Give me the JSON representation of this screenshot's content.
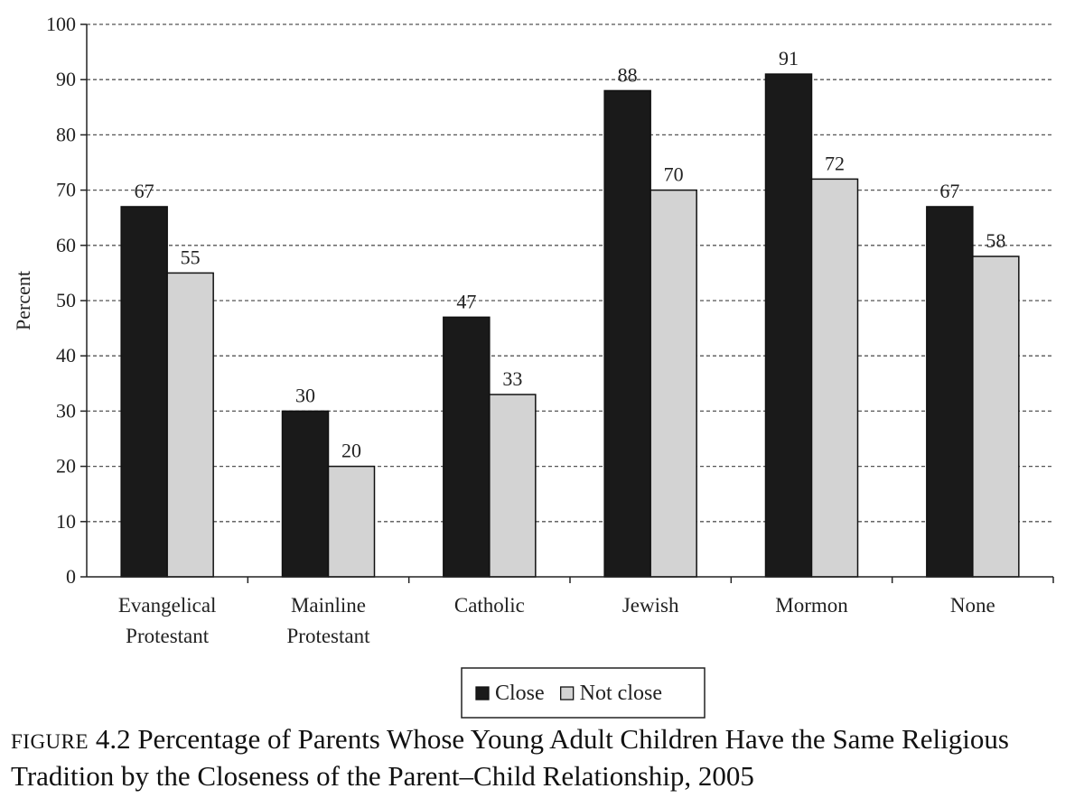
{
  "chart_data": {
    "type": "bar",
    "categories": [
      [
        "Evangelical",
        "Protestant"
      ],
      [
        "Mainline",
        "Protestant"
      ],
      [
        "Catholic"
      ],
      [
        "Jewish"
      ],
      [
        "Mormon"
      ],
      [
        "None"
      ]
    ],
    "series": [
      {
        "name": "Close",
        "color": "#1a1a1a",
        "values": [
          67,
          30,
          47,
          88,
          91,
          67
        ]
      },
      {
        "name": "Not close",
        "color": "#d3d3d3",
        "values": [
          55,
          20,
          33,
          70,
          72,
          58
        ]
      }
    ],
    "ylabel": "Percent",
    "ylim": [
      0,
      100
    ],
    "yticks": [
      0,
      10,
      20,
      30,
      40,
      50,
      60,
      70,
      80,
      90,
      100
    ],
    "grid": true,
    "legend_position": "bottom-center"
  },
  "caption": {
    "prefix": "FIGURE",
    "text": " 4.2 Percentage of Parents Whose Young Adult Children Have the Same Religious Tradition by the Closeness of the Parent–Child Relationship, 2005"
  }
}
